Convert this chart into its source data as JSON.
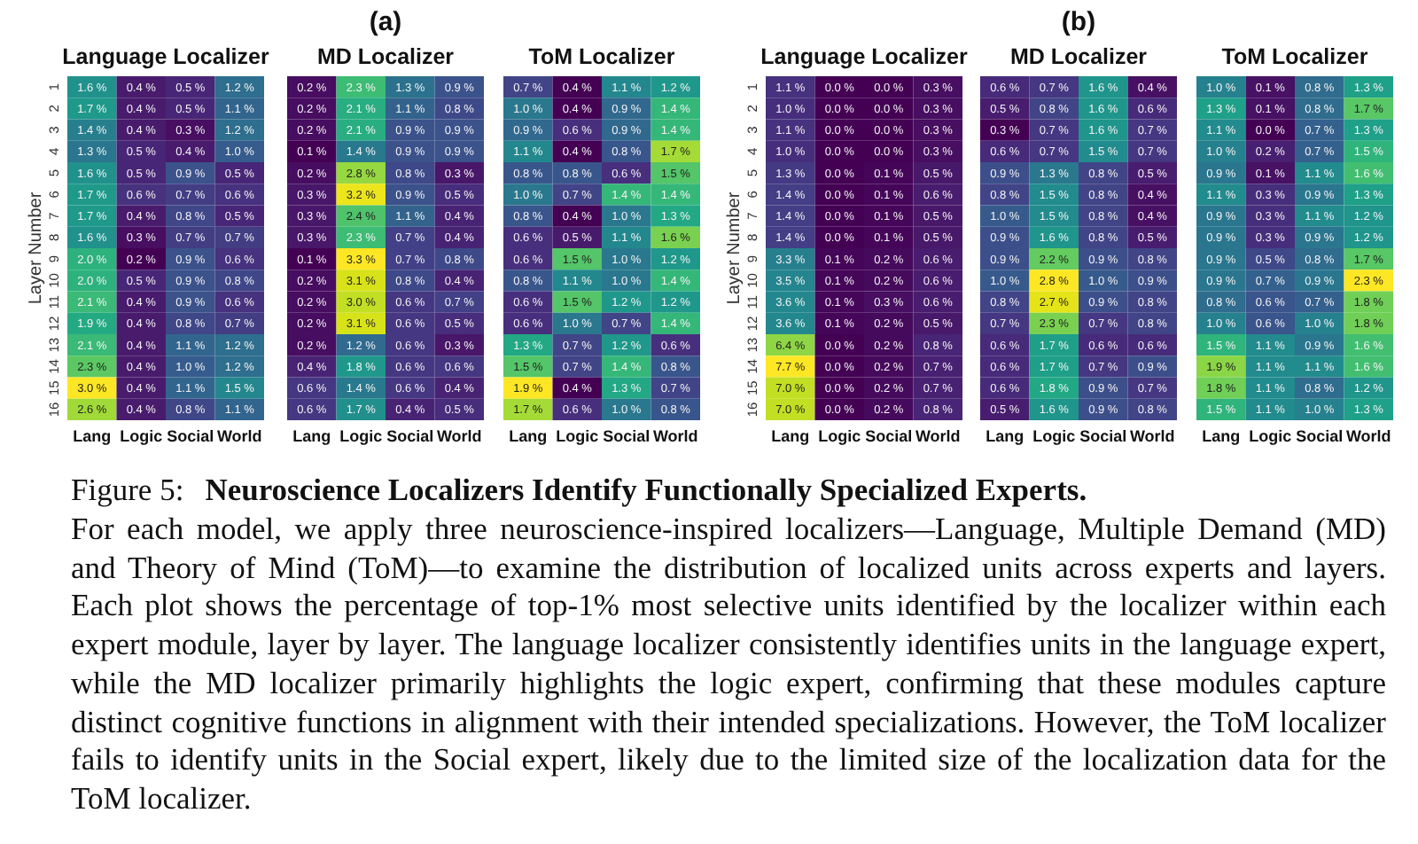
{
  "chart_data": [
    {
      "type": "heatmap",
      "title": "Language Localizer",
      "ylabel": "Layer Number",
      "categories": [
        "Lang",
        "Logic",
        "Social",
        "World"
      ],
      "y_categories": [
        "1",
        "2",
        "3",
        "4",
        "5",
        "6",
        "7",
        "8",
        "9",
        "10",
        "11",
        "12",
        "13",
        "14",
        "15",
        "16"
      ],
      "cells": [
        [
          1.6,
          0.4,
          0.5,
          1.2
        ],
        [
          1.7,
          0.4,
          0.5,
          1.1
        ],
        [
          1.4,
          0.4,
          0.3,
          1.2
        ],
        [
          1.3,
          0.5,
          0.4,
          1.0
        ],
        [
          1.6,
          0.5,
          0.9,
          0.5
        ],
        [
          1.7,
          0.6,
          0.7,
          0.6
        ],
        [
          1.7,
          0.4,
          0.8,
          0.5
        ],
        [
          1.6,
          0.3,
          0.7,
          0.7
        ],
        [
          2.0,
          0.2,
          0.9,
          0.6
        ],
        [
          2.0,
          0.5,
          0.9,
          0.8
        ],
        [
          2.1,
          0.4,
          0.9,
          0.6
        ],
        [
          1.9,
          0.4,
          0.8,
          0.7
        ],
        [
          2.1,
          0.4,
          1.1,
          1.2
        ],
        [
          2.3,
          0.4,
          1.0,
          1.2
        ],
        [
          3.0,
          0.4,
          1.1,
          1.5
        ],
        [
          2.6,
          0.4,
          0.8,
          1.1
        ]
      ],
      "cell_labels": [
        [
          "1.6 %",
          "0.4 %",
          "0.5 %",
          "1.2 %"
        ],
        [
          "1.7 %",
          "0.4 %",
          "0.5 %",
          "1.1 %"
        ],
        [
          "1.4 %",
          "0.4 %",
          "0.3 %",
          "1.2 %"
        ],
        [
          "1.3 %",
          "0.5 %",
          "0.4 %",
          "1.0 %"
        ],
        [
          "1.6 %",
          "0.5 %",
          "0.9 %",
          "0.5 %"
        ],
        [
          "1.7 %",
          "0.6 %",
          "0.7 %",
          "0.6 %"
        ],
        [
          "1.7 %",
          "0.4 %",
          "0.8 %",
          "0.5 %"
        ],
        [
          "1.6 %",
          "0.3 %",
          "0.7 %",
          "0.7 %"
        ],
        [
          "2.0 %",
          "0.2 %",
          "0.9 %",
          "0.6 %"
        ],
        [
          "2.0 %",
          "0.5 %",
          "0.9 %",
          "0.8 %"
        ],
        [
          "2.1 %",
          "0.4 %",
          "0.9 %",
          "0.6 %"
        ],
        [
          "1.9 %",
          "0.4 %",
          "0.8 %",
          "0.7 %"
        ],
        [
          "2.1 %",
          "0.4 %",
          "1.1 %",
          "1.2 %"
        ],
        [
          "2.3 %",
          "0.4 %",
          "1.0 %",
          "1.2 %"
        ],
        [
          "3.0 %",
          "0.4 %",
          "1.1 %",
          "1.5 %"
        ],
        [
          "2.6 %",
          "0.4 %",
          "0.8 %",
          "1.1 %"
        ]
      ]
    },
    {
      "type": "heatmap",
      "title": "MD Localizer",
      "annotations": [
        "(a)"
      ],
      "categories": [
        "Lang",
        "Logic",
        "Social",
        "World"
      ],
      "y_categories": [
        null,
        null,
        null,
        null,
        null,
        null,
        null,
        null,
        null,
        null,
        null,
        null,
        null,
        null,
        null,
        null
      ],
      "cells": [
        [
          0.2,
          2.3,
          1.3,
          0.9
        ],
        [
          0.2,
          2.1,
          1.1,
          0.8
        ],
        [
          0.2,
          2.1,
          0.9,
          0.9
        ],
        [
          0.1,
          1.4,
          0.9,
          0.9
        ],
        [
          0.2,
          2.8,
          0.8,
          0.3
        ],
        [
          0.3,
          3.2,
          0.9,
          0.5
        ],
        [
          0.3,
          2.4,
          1.1,
          0.4
        ],
        [
          0.3,
          2.3,
          0.7,
          0.4
        ],
        [
          0.1,
          3.3,
          0.7,
          0.8
        ],
        [
          0.2,
          3.1,
          0.8,
          0.4
        ],
        [
          0.2,
          3.0,
          0.6,
          0.7
        ],
        [
          0.2,
          3.1,
          0.6,
          0.5
        ],
        [
          0.2,
          1.2,
          0.6,
          0.3
        ],
        [
          0.4,
          1.8,
          0.6,
          0.6
        ],
        [
          0.6,
          1.4,
          0.6,
          0.4
        ],
        [
          0.6,
          1.7,
          0.4,
          0.5
        ]
      ],
      "cell_labels": [
        [
          "0.2 %",
          "2.3 %",
          "1.3 %",
          "0.9 %"
        ],
        [
          "0.2 %",
          "2.1 %",
          "1.1 %",
          "0.8 %"
        ],
        [
          "0.2 %",
          "2.1 %",
          "0.9 %",
          "0.9 %"
        ],
        [
          "0.1 %",
          "1.4 %",
          "0.9 %",
          "0.9 %"
        ],
        [
          "0.2 %",
          "2.8 %",
          "0.8 %",
          "0.3 %"
        ],
        [
          "0.3 %",
          "3.2 %",
          "0.9 %",
          "0.5 %"
        ],
        [
          "0.3 %",
          "2.4 %",
          "1.1 %",
          "0.4 %"
        ],
        [
          "0.3 %",
          "2.3 %",
          "0.7 %",
          "0.4 %"
        ],
        [
          "0.1 %",
          "3.3 %",
          "0.7 %",
          "0.8 %"
        ],
        [
          "0.2 %",
          "3.1 %",
          "0.8 %",
          "0.4 %"
        ],
        [
          "0.2 %",
          "3.0 %",
          "0.6 %",
          "0.7 %"
        ],
        [
          "0.2 %",
          "3.1 %",
          "0.6 %",
          "0.5 %"
        ],
        [
          "0.2 %",
          "1.2 %",
          "0.6 %",
          "0.3 %"
        ],
        [
          "0.4 %",
          "1.8 %",
          "0.6 %",
          "0.6 %"
        ],
        [
          "0.6 %",
          "1.4 %",
          "0.6 %",
          "0.4 %"
        ],
        [
          "0.6 %",
          "1.7 %",
          "0.4 %",
          "0.5 %"
        ]
      ]
    },
    {
      "type": "heatmap",
      "title": "ToM Localizer",
      "categories": [
        "Lang",
        "Logic",
        "Social",
        "World"
      ],
      "y_categories": [
        null,
        null,
        null,
        null,
        null,
        null,
        null,
        null,
        null,
        null,
        null,
        null,
        null,
        null,
        null,
        null
      ],
      "cells": [
        [
          0.7,
          0.4,
          1.1,
          1.2
        ],
        [
          1.0,
          0.4,
          0.9,
          1.4
        ],
        [
          0.9,
          0.6,
          0.9,
          1.4
        ],
        [
          1.1,
          0.4,
          0.8,
          1.7
        ],
        [
          0.8,
          0.8,
          0.6,
          1.5
        ],
        [
          1.0,
          0.7,
          1.4,
          1.4
        ],
        [
          0.8,
          0.4,
          1.0,
          1.3
        ],
        [
          0.6,
          0.5,
          1.1,
          1.6
        ],
        [
          0.6,
          1.5,
          1.0,
          1.2
        ],
        [
          0.8,
          1.1,
          1.0,
          1.4
        ],
        [
          0.6,
          1.5,
          1.2,
          1.2
        ],
        [
          0.6,
          1.0,
          0.7,
          1.4
        ],
        [
          1.3,
          0.7,
          1.2,
          0.6
        ],
        [
          1.5,
          0.7,
          1.4,
          0.8
        ],
        [
          1.9,
          0.4,
          1.3,
          0.7
        ],
        [
          1.7,
          0.6,
          1.0,
          0.8
        ]
      ],
      "cell_labels": [
        [
          "0.7 %",
          "0.4 %",
          "1.1 %",
          "1.2 %"
        ],
        [
          "1.0 %",
          "0.4 %",
          "0.9 %",
          "1.4 %"
        ],
        [
          "0.9 %",
          "0.6 %",
          "0.9 %",
          "1.4 %"
        ],
        [
          "1.1 %",
          "0.4 %",
          "0.8 %",
          "1.7 %"
        ],
        [
          "0.8 %",
          "0.8 %",
          "0.6 %",
          "1.5 %"
        ],
        [
          "1.0 %",
          "0.7 %",
          "1.4 %",
          "1.4 %"
        ],
        [
          "0.8 %",
          "0.4 %",
          "1.0 %",
          "1.3 %"
        ],
        [
          "0.6 %",
          "0.5 %",
          "1.1 %",
          "1.6 %"
        ],
        [
          "0.6 %",
          "1.5 %",
          "1.0 %",
          "1.2 %"
        ],
        [
          "0.8 %",
          "1.1 %",
          "1.0 %",
          "1.4 %"
        ],
        [
          "0.6 %",
          "1.5 %",
          "1.2 %",
          "1.2 %"
        ],
        [
          "0.6 %",
          "1.0 %",
          "0.7 %",
          "1.4 %"
        ],
        [
          "1.3 %",
          "0.7 %",
          "1.2 %",
          "0.6 %"
        ],
        [
          "1.5 %",
          "0.7 %",
          "1.4 %",
          "0.8 %"
        ],
        [
          "1.9 %",
          "0.4 %",
          "1.3 %",
          "0.7 %"
        ],
        [
          "1.7 %",
          "0.6 %",
          "1.0 %",
          "0.8 %"
        ]
      ]
    },
    {
      "type": "heatmap",
      "title": "Language Localizer",
      "ylabel": "Layer Number",
      "categories": [
        "Lang",
        "Logic",
        "Social",
        "World"
      ],
      "y_categories": [
        "1",
        "2",
        "3",
        "4",
        "5",
        "6",
        "7",
        "8",
        "9",
        "10",
        "11",
        "12",
        "13",
        "14",
        "15",
        "16"
      ],
      "cells": [
        [
          1.1,
          0.0,
          0.0,
          0.3
        ],
        [
          1.0,
          0.0,
          0.0,
          0.3
        ],
        [
          1.1,
          0.0,
          0.0,
          0.3
        ],
        [
          1.0,
          0.0,
          0.0,
          0.3
        ],
        [
          1.3,
          0.0,
          0.1,
          0.5
        ],
        [
          1.4,
          0.0,
          0.1,
          0.6
        ],
        [
          1.4,
          0.0,
          0.1,
          0.5
        ],
        [
          1.4,
          0.0,
          0.1,
          0.5
        ],
        [
          3.3,
          0.1,
          0.2,
          0.6
        ],
        [
          3.5,
          0.1,
          0.2,
          0.6
        ],
        [
          3.6,
          0.1,
          0.3,
          0.6
        ],
        [
          3.6,
          0.1,
          0.2,
          0.5
        ],
        [
          6.4,
          0.0,
          0.2,
          0.8
        ],
        [
          7.7,
          0.0,
          0.2,
          0.7
        ],
        [
          7.0,
          0.0,
          0.2,
          0.7
        ],
        [
          7.0,
          0.0,
          0.2,
          0.8
        ]
      ],
      "cell_labels": [
        [
          "1.1 %",
          "0.0 %",
          "0.0 %",
          "0.3 %"
        ],
        [
          "1.0 %",
          "0.0 %",
          "0.0 %",
          "0.3 %"
        ],
        [
          "1.1 %",
          "0.0 %",
          "0.0 %",
          "0.3 %"
        ],
        [
          "1.0 %",
          "0.0 %",
          "0.0 %",
          "0.3 %"
        ],
        [
          "1.3 %",
          "0.0 %",
          "0.1 %",
          "0.5 %"
        ],
        [
          "1.4 %",
          "0.0 %",
          "0.1 %",
          "0.6 %"
        ],
        [
          "1.4 %",
          "0.0 %",
          "0.1 %",
          "0.5 %"
        ],
        [
          "1.4 %",
          "0.0 %",
          "0.1 %",
          "0.5 %"
        ],
        [
          "3.3 %",
          "0.1 %",
          "0.2 %",
          "0.6 %"
        ],
        [
          "3.5 %",
          "0.1 %",
          "0.2 %",
          "0.6 %"
        ],
        [
          "3.6 %",
          "0.1 %",
          "0.3 %",
          "0.6 %"
        ],
        [
          "3.6 %",
          "0.1 %",
          "0.2 %",
          "0.5 %"
        ],
        [
          "6.4 %",
          "0.0 %",
          "0.2 %",
          "0.8 %"
        ],
        [
          "7.7 %",
          "0.0 %",
          "0.2 %",
          "0.7 %"
        ],
        [
          "7.0 %",
          "0.0 %",
          "0.2 %",
          "0.7 %"
        ],
        [
          "7.0 %",
          "0.0 %",
          "0.2 %",
          "0.8 %"
        ]
      ]
    },
    {
      "type": "heatmap",
      "title": "MD Localizer",
      "annotations": [
        "(b)"
      ],
      "categories": [
        "Lang",
        "Logic",
        "Social",
        "World"
      ],
      "y_categories": [
        null,
        null,
        null,
        null,
        null,
        null,
        null,
        null,
        null,
        null,
        null,
        null,
        null,
        null,
        null,
        null
      ],
      "cells": [
        [
          0.6,
          0.7,
          1.6,
          0.4
        ],
        [
          0.5,
          0.8,
          1.6,
          0.6
        ],
        [
          0.3,
          0.7,
          1.6,
          0.7
        ],
        [
          0.6,
          0.7,
          1.5,
          0.7
        ],
        [
          0.9,
          1.3,
          0.8,
          0.5
        ],
        [
          0.8,
          1.5,
          0.8,
          0.4
        ],
        [
          1.0,
          1.5,
          0.8,
          0.4
        ],
        [
          0.9,
          1.6,
          0.8,
          0.5
        ],
        [
          0.9,
          2.2,
          0.9,
          0.8
        ],
        [
          1.0,
          2.8,
          1.0,
          0.9
        ],
        [
          0.8,
          2.7,
          0.9,
          0.8
        ],
        [
          0.7,
          2.3,
          0.7,
          0.8
        ],
        [
          0.6,
          1.7,
          0.6,
          0.6
        ],
        [
          0.6,
          1.7,
          0.7,
          0.9
        ],
        [
          0.6,
          1.8,
          0.9,
          0.7
        ],
        [
          0.5,
          1.6,
          0.9,
          0.8
        ]
      ],
      "cell_labels": [
        [
          "0.6 %",
          "0.7 %",
          "1.6 %",
          "0.4 %"
        ],
        [
          "0.5 %",
          "0.8 %",
          "1.6 %",
          "0.6 %"
        ],
        [
          "0.3 %",
          "0.7 %",
          "1.6 %",
          "0.7 %"
        ],
        [
          "0.6 %",
          "0.7 %",
          "1.5 %",
          "0.7 %"
        ],
        [
          "0.9 %",
          "1.3 %",
          "0.8 %",
          "0.5 %"
        ],
        [
          "0.8 %",
          "1.5 %",
          "0.8 %",
          "0.4 %"
        ],
        [
          "1.0 %",
          "1.5 %",
          "0.8 %",
          "0.4 %"
        ],
        [
          "0.9 %",
          "1.6 %",
          "0.8 %",
          "0.5 %"
        ],
        [
          "0.9 %",
          "2.2 %",
          "0.9 %",
          "0.8 %"
        ],
        [
          "1.0 %",
          "2.8 %",
          "1.0 %",
          "0.9 %"
        ],
        [
          "0.8 %",
          "2.7 %",
          "0.9 %",
          "0.8 %"
        ],
        [
          "0.7 %",
          "2.3 %",
          "0.7 %",
          "0.8 %"
        ],
        [
          "0.6 %",
          "1.7 %",
          "0.6 %",
          "0.6 %"
        ],
        [
          "0.6 %",
          "1.7 %",
          "0.7 %",
          "0.9 %"
        ],
        [
          "0.6 %",
          "1.8 %",
          "0.9 %",
          "0.7 %"
        ],
        [
          "0.5 %",
          "1.6 %",
          "0.9 %",
          "0.8 %"
        ]
      ]
    },
    {
      "type": "heatmap",
      "title": "ToM Localizer",
      "categories": [
        "Lang",
        "Logic",
        "Social",
        "World"
      ],
      "y_categories": [
        null,
        null,
        null,
        null,
        null,
        null,
        null,
        null,
        null,
        null,
        null,
        null,
        null,
        null,
        null,
        null
      ],
      "cells": [
        [
          1.0,
          0.1,
          0.8,
          1.3
        ],
        [
          1.3,
          0.1,
          0.8,
          1.7
        ],
        [
          1.1,
          0.0,
          0.7,
          1.3
        ],
        [
          1.0,
          0.2,
          0.7,
          1.5
        ],
        [
          0.9,
          0.1,
          1.1,
          1.6
        ],
        [
          1.1,
          0.3,
          0.9,
          1.3
        ],
        [
          0.9,
          0.3,
          1.1,
          1.2
        ],
        [
          0.9,
          0.3,
          0.9,
          1.2
        ],
        [
          0.9,
          0.5,
          0.8,
          1.7
        ],
        [
          0.9,
          0.7,
          0.9,
          2.3
        ],
        [
          0.8,
          0.6,
          0.7,
          1.8
        ],
        [
          1.0,
          0.6,
          1.0,
          1.8
        ],
        [
          1.5,
          1.1,
          0.9,
          1.6
        ],
        [
          1.9,
          1.1,
          1.1,
          1.6
        ],
        [
          1.8,
          1.1,
          0.8,
          1.2
        ],
        [
          1.5,
          1.1,
          1.0,
          1.3
        ]
      ],
      "cell_labels": [
        [
          "1.0 %",
          "0.1 %",
          "0.8 %",
          "1.3 %"
        ],
        [
          "1.3 %",
          "0.1 %",
          "0.8 %",
          "1.7 %"
        ],
        [
          "1.1 %",
          "0.0 %",
          "0.7 %",
          "1.3 %"
        ],
        [
          "1.0 %",
          "0.2 %",
          "0.7 %",
          "1.5 %"
        ],
        [
          "0.9 %",
          "0.1 %",
          "1.1 %",
          "1.6 %"
        ],
        [
          "1.1 %",
          "0.3 %",
          "0.9 %",
          "1.3 %"
        ],
        [
          "0.9 %",
          "0.3 %",
          "1.1 %",
          "1.2 %"
        ],
        [
          "0.9 %",
          "0.3 %",
          "0.9 %",
          "1.2 %"
        ],
        [
          "0.9 %",
          "0.5 %",
          "0.8 %",
          "1.7 %"
        ],
        [
          "0.9 %",
          "0.7 %",
          "0.9 %",
          "2.3 %"
        ],
        [
          "0.8 %",
          "0.6 %",
          "0.7 %",
          "1.8 %"
        ],
        [
          "1.0 %",
          "0.6 %",
          "1.0 %",
          "1.8 %"
        ],
        [
          "1.5 %",
          "1.1 %",
          "0.9 %",
          "1.6 %"
        ],
        [
          "1.9 %",
          "1.1 %",
          "1.1 %",
          "1.6 %"
        ],
        [
          "1.8 %",
          "1.1 %",
          "0.8 %",
          "1.2 %"
        ],
        [
          "1.5 %",
          "1.1 %",
          "1.0 %",
          "1.3 %"
        ]
      ],
      "annotations": [
        "Figure 5:",
        "Neuroscience Localizers Identify Functionally Specialized Experts.",
        "For each model, we apply three neuroscience-inspired localizers—Language, Multiple Demand (MD) and Theory of Mind (ToM)—to examine the distribution of localized units across experts and layers. Each plot shows the percentage of top-1% most selective units identified by the localizer within each expert module, layer by layer. The language localizer consistently identifies units in the language expert, while the MD localizer primarily highlights the logic expert, confirming that these modules capture distinct cognitive functions in alignment with their intended specializations. However, the ToM localizer fails to identify units in the Social expert, likely due to the limited size of the localization data for the ToM localizer."
      ]
    }
  ]
}
